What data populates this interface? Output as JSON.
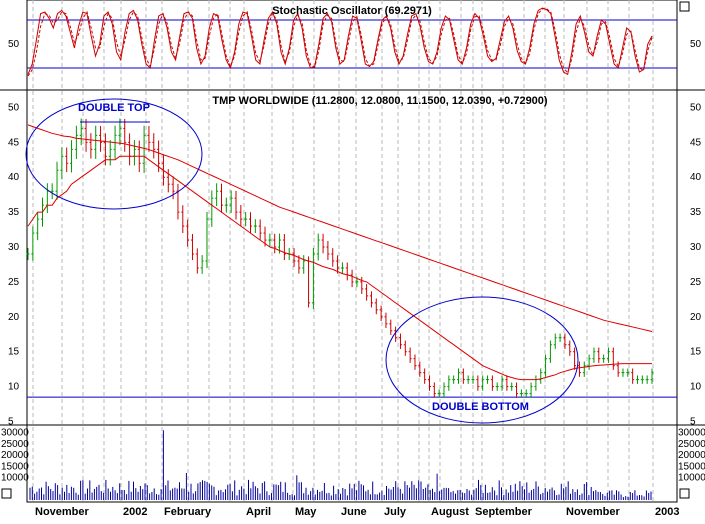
{
  "chart_data": [
    {
      "type": "line",
      "panel": "stochastic",
      "title": "Stochastic Oscillator (69.2971)",
      "yticks": [
        50
      ],
      "ylim": [
        0,
        100
      ],
      "reference_lines": [
        80,
        20
      ],
      "series": [
        {
          "name": "%K",
          "style": "solid",
          "color": "#cc0000",
          "values": [
            12,
            25,
            55,
            88,
            90,
            82,
            70,
            88,
            92,
            85,
            65,
            45,
            72,
            90,
            88,
            60,
            35,
            50,
            85,
            90,
            75,
            40,
            30,
            65,
            88,
            92,
            80,
            50,
            25,
            20,
            55,
            85,
            88,
            70,
            40,
            30,
            60,
            88,
            90,
            82,
            45,
            25,
            35,
            70,
            88,
            85,
            55,
            30,
            20,
            40,
            75,
            90,
            88,
            60,
            30,
            25,
            55,
            82,
            90,
            75,
            40,
            25,
            45,
            80,
            88,
            70,
            35,
            20,
            22,
            50,
            82,
            88,
            78,
            45,
            25,
            30,
            60,
            85,
            82,
            55,
            25,
            22,
            28,
            55,
            80,
            85,
            70,
            40,
            25,
            35,
            62,
            85,
            88,
            72,
            45,
            28,
            25,
            40,
            70,
            85,
            80,
            55,
            30,
            25,
            45,
            75,
            88,
            82,
            60,
            35,
            28,
            32,
            55,
            78,
            85,
            70,
            42,
            28,
            25,
            45,
            75,
            92,
            95,
            93,
            88,
            60,
            30,
            15,
            12,
            40,
            75,
            85,
            65,
            40,
            35,
            60,
            80,
            75,
            50,
            25,
            20,
            45,
            70,
            65,
            35,
            15,
            18,
            50,
            60
          ]
        },
        {
          "name": "%D",
          "style": "dashed",
          "color": "#cc0000",
          "values": [
            10,
            18,
            40,
            72,
            88,
            86,
            76,
            80,
            90,
            88,
            72,
            52,
            62,
            82,
            90,
            70,
            45,
            45,
            72,
            88,
            82,
            52,
            35,
            55,
            80,
            90,
            85,
            58,
            32,
            22,
            45,
            75,
            88,
            76,
            48,
            32,
            52,
            80,
            90,
            85,
            55,
            30,
            32,
            60,
            82,
            88,
            62,
            35,
            22,
            35,
            65,
            85,
            90,
            68,
            38,
            28,
            48,
            75,
            88,
            80,
            48,
            28,
            40,
            72,
            86,
            76,
            42,
            24,
            21,
            42,
            75,
            86,
            82,
            52,
            30,
            28,
            52,
            78,
            84,
            62,
            32,
            22,
            25,
            48,
            75,
            84,
            75,
            48,
            28,
            32,
            55,
            80,
            86,
            78,
            52,
            32,
            26,
            35,
            62,
            80,
            82,
            62,
            36,
            26,
            38,
            68,
            84,
            85,
            66,
            42,
            30,
            30,
            48,
            72,
            82,
            75,
            50,
            32,
            26,
            38,
            68,
            88,
            94,
            94,
            90,
            68,
            38,
            20,
            14,
            32,
            65,
            82,
            72,
            48,
            36,
            52,
            75,
            78,
            58,
            32,
            22,
            38,
            62,
            66,
            42,
            20,
            17,
            42,
            58
          ]
        }
      ]
    },
    {
      "type": "candlestick",
      "panel": "price",
      "title": "TMP WORLDWIDE (11.2800, 12.0800, 11.1500, 12.0390, +0.72900)",
      "yticks": [
        5,
        10,
        15,
        20,
        25,
        30,
        35,
        40,
        45,
        50
      ],
      "ylim": [
        4.5,
        52.5
      ],
      "x_labels": [
        "November",
        "2002",
        "February",
        "April",
        "May",
        "June",
        "July",
        "August",
        "September",
        "November",
        "2003"
      ],
      "close": [
        29,
        32,
        34,
        36,
        38,
        38,
        41,
        43,
        42,
        44,
        46,
        47,
        45,
        44,
        46,
        45,
        43,
        44,
        46,
        47,
        45,
        43,
        44,
        42,
        46,
        45,
        44,
        42,
        40,
        39,
        38,
        35,
        33,
        31,
        29,
        27,
        28,
        34,
        37,
        38,
        36,
        36,
        37,
        35,
        34,
        34,
        33,
        33,
        32,
        31,
        31,
        30,
        31,
        29,
        29,
        28,
        27,
        28,
        22,
        29,
        31,
        30,
        29,
        28,
        27,
        27,
        26,
        25,
        25,
        24,
        23,
        22,
        21,
        20,
        19,
        18,
        17,
        16,
        15,
        14,
        13,
        12,
        11,
        10,
        9,
        9,
        10,
        11,
        11,
        12,
        11,
        11,
        11,
        10,
        11,
        11,
        10,
        10,
        11,
        10,
        10,
        9,
        9,
        9,
        10,
        11,
        12,
        14,
        16,
        17,
        17,
        16,
        15,
        13,
        12,
        13,
        14,
        15,
        14,
        14,
        15,
        13,
        12,
        12,
        12,
        11,
        11,
        11,
        11,
        12
      ],
      "moving_averages": [
        {
          "name": "MA short",
          "color": "#dd0000",
          "values": [
            33,
            34,
            35,
            35,
            36,
            36,
            37,
            37.5,
            38,
            39,
            39.5,
            40,
            40.5,
            41,
            41.5,
            42,
            42.5,
            42.5,
            42.5,
            43,
            43,
            43,
            43,
            43,
            43,
            42.5,
            42,
            41.5,
            41,
            40.5,
            40,
            39.5,
            39,
            38.5,
            38,
            37.5,
            37,
            36.5,
            36,
            35.5,
            35,
            34.5,
            34,
            33.5,
            33,
            32.5,
            32,
            31.5,
            31,
            30.5,
            30,
            29.8,
            29.5,
            29.2,
            29,
            28.8,
            28.5,
            28.2,
            28,
            27.8,
            27.5,
            27.2,
            27,
            26.8,
            26.5,
            26.2,
            26,
            25.8,
            25.5,
            25.2,
            25,
            24.5,
            24,
            23.5,
            23,
            22.5,
            22,
            21.5,
            21,
            20.5,
            20,
            19.5,
            19,
            18.5,
            18,
            17.5,
            17,
            16.5,
            16,
            15.5,
            15,
            14.5,
            14,
            13.5,
            13,
            12.7,
            12.4,
            12.1,
            11.8,
            11.5,
            11.3,
            11.1,
            11,
            11,
            11,
            11,
            11.1,
            11.3,
            11.5,
            11.7,
            12,
            12.2,
            12.4,
            12.6,
            12.7,
            12.8,
            12.9,
            13,
            13.05,
            13.1,
            13.15,
            13.2,
            13.25,
            13.3,
            13.3,
            13.3,
            13.3,
            13.3,
            13.3,
            13.3
          ]
        },
        {
          "name": "MA long",
          "color": "#dd0000",
          "values": [
            47.5,
            47.2,
            46.9,
            46.6,
            46.3,
            46.1,
            45.9,
            45.8,
            45.6,
            45.5,
            45.4,
            45.3,
            45.2,
            45.1,
            45,
            44.9,
            44.8,
            44.6,
            44.4,
            44.2,
            44,
            43.7,
            43.4,
            43.1,
            42.8,
            42.5,
            42.1,
            41.7,
            41.3,
            40.9,
            40.5,
            40.1,
            39.7,
            39.3,
            38.9,
            38.5,
            38.1,
            37.7,
            37.3,
            36.9,
            36.5,
            36.1,
            35.7,
            35.4,
            35.1,
            34.8,
            34.5,
            34.2,
            33.9,
            33.6,
            33.3,
            33,
            32.7,
            32.4,
            32.1,
            31.8,
            31.5,
            31.2,
            30.9,
            30.6,
            30.3,
            30,
            29.7,
            29.4,
            29.1,
            28.8,
            28.5,
            28.2,
            27.9,
            27.6,
            27.3,
            27,
            26.7,
            26.4,
            26.1,
            25.8,
            25.5,
            25.2,
            24.9,
            24.6,
            24.3,
            24,
            23.7,
            23.4,
            23.1,
            22.8,
            22.5,
            22.2,
            21.9,
            21.6,
            21.3,
            21,
            20.7,
            20.4,
            20.1,
            19.8,
            19.5,
            19.3,
            19.1,
            18.9,
            18.7,
            18.5,
            18.3,
            18.1,
            17.9
          ]
        }
      ],
      "horizontal_lines": [
        {
          "value": 8.5,
          "color": "#0000cc"
        }
      ],
      "annotations": [
        {
          "text": "DOUBLE TOP",
          "color": "#0000cc"
        },
        {
          "text": "DOUBLE BOTTOM",
          "color": "#0000cc"
        }
      ]
    },
    {
      "type": "bar",
      "panel": "volume",
      "yticks": [
        10000,
        15000,
        20000,
        25000,
        30000
      ],
      "ytick_labels_left": [
        "10000",
        "15000",
        "20000",
        "25000",
        "30000"
      ],
      "ytick_labels_right": [
        "10000",
        "15000",
        "20000",
        "25000",
        "30000"
      ],
      "ylim": [
        0,
        32000
      ],
      "color": "#000099"
    }
  ],
  "colors": {
    "price_up": "#009900",
    "price_down": "#cc0000",
    "ellipse": "#0000cc",
    "grid": "#b8b8b8"
  }
}
